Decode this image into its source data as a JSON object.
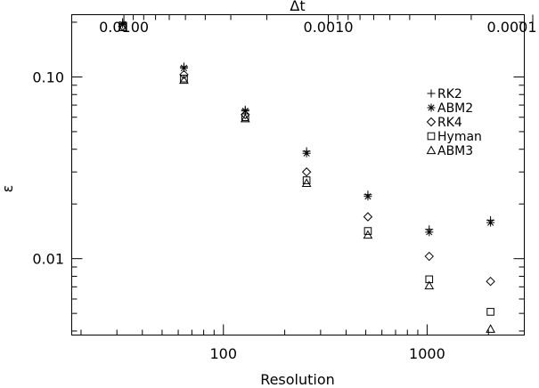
{
  "chart_data": {
    "type": "scatter",
    "title": "",
    "xlabel": "Resolution",
    "ylabel": "ε",
    "x2label": "Δt",
    "xscale": "log",
    "yscale": "log",
    "x2scale": "log",
    "xlim": [
      18,
      3000
    ],
    "ylim": [
      0.0038,
      0.22
    ],
    "x2lim": [
      0.018,
      0.00011
    ],
    "x_ticks": [
      100,
      1000
    ],
    "x_tick_labels": [
      "100",
      "1000"
    ],
    "y_ticks": [
      0.01,
      0.1
    ],
    "y_tick_labels": [
      "0.01",
      "0.10"
    ],
    "x2_ticks": [
      0.01,
      0.001,
      0.0001
    ],
    "x2_tick_labels": [
      "0.0100",
      "0.0010",
      "0.0001"
    ],
    "grid": false,
    "legend_position": "right",
    "x": [
      32,
      64,
      128,
      256,
      512,
      1024,
      2048
    ],
    "series": [
      {
        "name": "RK2",
        "marker": "plus",
        "values": [
          0.2,
          0.114,
          0.066,
          0.039,
          0.0225,
          0.0145,
          0.0163
        ]
      },
      {
        "name": "ABM2",
        "marker": "asterisk",
        "values": [
          0.195,
          0.112,
          0.065,
          0.038,
          0.022,
          0.014,
          0.0158
        ]
      },
      {
        "name": "RK4",
        "marker": "diamond",
        "values": [
          0.19,
          0.103,
          0.062,
          0.03,
          0.017,
          0.0103,
          0.0075
        ]
      },
      {
        "name": "Hyman",
        "marker": "square",
        "values": [
          0.188,
          0.098,
          0.06,
          0.027,
          0.0142,
          0.0077,
          0.0051
        ]
      },
      {
        "name": "ABM3",
        "marker": "triangle",
        "values": [
          0.187,
          0.096,
          0.059,
          0.026,
          0.0135,
          0.0071,
          0.0041
        ]
      }
    ]
  }
}
